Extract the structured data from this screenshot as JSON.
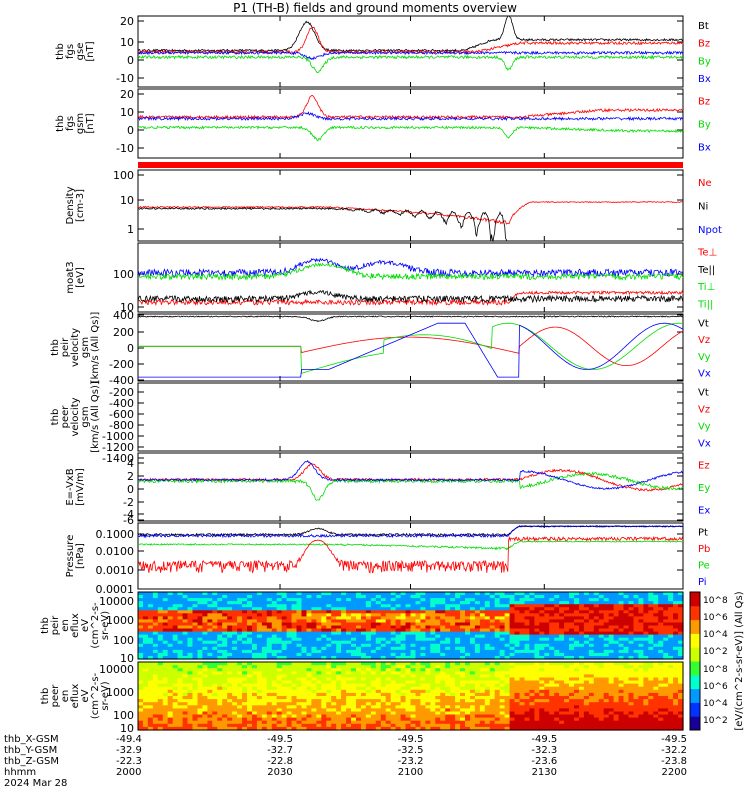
{
  "title": "P1 (TH-B) fields and ground moments overview",
  "colors": {
    "black": "#000000",
    "red": "#ff0000",
    "green": "#00dd00",
    "blue": "#0000ff"
  },
  "chart_data": [
    {
      "type": "line",
      "ylabel": [
        "thb",
        "fgs",
        "gse",
        "[nT]"
      ],
      "yticks": [
        "20",
        "10",
        "0",
        "-10"
      ],
      "series": [
        {
          "name": "Bt",
          "color": "#000000"
        },
        {
          "name": "Bz",
          "color": "#ff0000"
        },
        {
          "name": "By",
          "color": "#00dd00"
        },
        {
          "name": "Bx",
          "color": "#0000ff"
        }
      ]
    },
    {
      "type": "line",
      "ylabel": [
        "thb",
        "fgs",
        "gsm",
        "[nT]"
      ],
      "yticks": [
        "20",
        "10",
        "0",
        "-10"
      ],
      "series": [
        {
          "name": "Bz",
          "color": "#ff0000"
        },
        {
          "name": "By",
          "color": "#00dd00"
        },
        {
          "name": "Bx",
          "color": "#0000ff"
        }
      ]
    },
    {
      "type": "line",
      "ylabel": [
        "Density",
        "[cm-3]"
      ],
      "yticks": [
        "100",
        "10",
        "1"
      ],
      "series": [
        {
          "name": "Ne",
          "color": "#ff0000"
        },
        {
          "name": "Ni",
          "color": "#000000"
        },
        {
          "name": "Npot",
          "color": "#0000ff"
        }
      ]
    },
    {
      "type": "line",
      "ylabel": [
        "moat3",
        "[eV]"
      ],
      "yticks": [
        "100",
        "10"
      ],
      "series": [
        {
          "name": "Te⊥",
          "color": "#ff0000"
        },
        {
          "name": "Te||",
          "color": "#000000"
        },
        {
          "name": "Ti⊥",
          "color": "#00dd00"
        },
        {
          "name": "Ti||",
          "color": "#00dd00"
        }
      ]
    },
    {
      "type": "line",
      "ylabel": [
        "thb",
        "peir",
        "velocity",
        "gsm",
        "[km/s (All Qs)]"
      ],
      "yticks": [
        "400",
        "200",
        "0",
        "-200",
        "-400"
      ],
      "series": [
        {
          "name": "Vt",
          "color": "#000000"
        },
        {
          "name": "Vz",
          "color": "#ff0000"
        },
        {
          "name": "Vy",
          "color": "#00dd00"
        },
        {
          "name": "Vx",
          "color": "#0000ff"
        }
      ]
    },
    {
      "type": "line",
      "ylabel": [
        "thb",
        "peer",
        "velocity",
        "gsm",
        "[km/s (All Qs)]"
      ],
      "yticks": [
        "-200",
        "-400",
        "-600",
        "-800",
        "-1000",
        "-1200",
        "-1400"
      ],
      "series": [
        {
          "name": "Vt",
          "color": "#000000"
        },
        {
          "name": "Vz",
          "color": "#ff0000"
        },
        {
          "name": "Vy",
          "color": "#00dd00"
        },
        {
          "name": "Vx",
          "color": "#0000ff"
        }
      ]
    },
    {
      "type": "line",
      "ylabel": [
        "E=-VxB",
        "[mV/m]"
      ],
      "yticks": [
        "4",
        "2",
        "0",
        "-2",
        "-4",
        "-6"
      ],
      "series": [
        {
          "name": "Ez",
          "color": "#ff0000"
        },
        {
          "name": "Ey",
          "color": "#00dd00"
        },
        {
          "name": "Ex",
          "color": "#0000ff"
        }
      ]
    },
    {
      "type": "line",
      "ylabel": [
        "Pressure",
        "[nPa]"
      ],
      "yticks": [
        "0.1000",
        "0.0100",
        "0.0010",
        "0.0001"
      ],
      "series": [
        {
          "name": "Pt",
          "color": "#000000"
        },
        {
          "name": "Pb",
          "color": "#ff0000"
        },
        {
          "name": "Pe",
          "color": "#00dd00"
        },
        {
          "name": "Pi",
          "color": "#0000ff"
        }
      ]
    },
    {
      "type": "heatmap",
      "ylabel": [
        "thb",
        "peir",
        "en",
        "eflux",
        "eV",
        "(cm^2-s-",
        "sr-eV)"
      ],
      "yticks": [
        "10000",
        "1000",
        "100",
        "10"
      ]
    },
    {
      "type": "heatmap",
      "ylabel": [
        "thb",
        "peer",
        "en",
        "eflux",
        "eV",
        "(cm^2-s-",
        "sr-eV)"
      ],
      "yticks": [
        "10000",
        "1000",
        "100",
        "10"
      ]
    }
  ],
  "colorbar": {
    "ticks_top": [
      "10^8",
      "10^6",
      "10^4",
      "10^2"
    ],
    "ticks_bottom": [
      "10^8",
      "10^6",
      "10^4",
      "10^2"
    ],
    "label": "[eV/(cm^2-s-sr-eV)] (All Qs)"
  },
  "xaxis": {
    "row_labels": [
      "thb_X-GSM",
      "thb_Y-GSM",
      "thb_Z-GSM",
      "hhmm",
      "2024 Mar 28"
    ],
    "ticks": [
      {
        "vals": [
          "-49.4",
          "-32.9",
          "-22.3",
          "2000"
        ]
      },
      {
        "vals": [
          "-49.5",
          "-32.7",
          "-22.8",
          "2030"
        ]
      },
      {
        "vals": [
          "-49.5",
          "-32.5",
          "-23.2",
          "2100"
        ]
      },
      {
        "vals": [
          "-49.5",
          "-32.3",
          "-23.6",
          "2130"
        ]
      },
      {
        "vals": [
          "-49.5",
          "-32.2",
          "-23.8",
          "2200"
        ]
      }
    ]
  }
}
